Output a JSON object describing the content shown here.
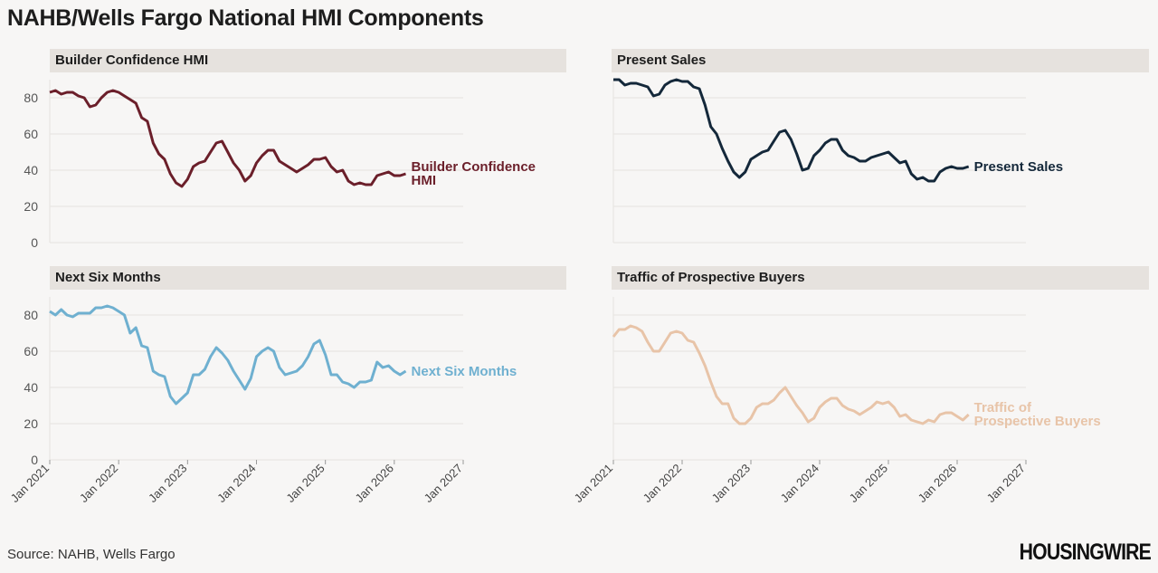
{
  "title": "NAHB/Wells Fargo National HMI Components",
  "source": "Source: NAHB, Wells Fargo",
  "logo": "HOUSINGWIRE",
  "chart_data": [
    {
      "type": "line",
      "title": "Builder Confidence HMI",
      "series_label": [
        "Builder Confidence",
        "HMI"
      ],
      "color": "#6b1f2a",
      "x_start": "2021-01",
      "x_ticks": [
        "Jan 2021",
        "Jan 2022",
        "Jan 2023",
        "Jan 2024",
        "Jan 2025",
        "Jan 2026",
        "Jan 2027"
      ],
      "ylim": [
        0,
        90
      ],
      "y_ticks": [
        0,
        20,
        40,
        60,
        80
      ],
      "grid": true,
      "values": [
        83,
        84,
        82,
        83,
        83,
        81,
        80,
        75,
        76,
        80,
        83,
        84,
        83,
        81,
        79,
        77,
        69,
        67,
        55,
        49,
        46,
        38,
        33,
        31,
        35,
        42,
        44,
        45,
        50,
        55,
        56,
        50,
        44,
        40,
        34,
        37,
        44,
        48,
        51,
        51,
        45,
        43,
        41,
        39,
        41,
        43,
        46,
        46,
        47,
        42,
        39,
        40,
        34,
        32,
        33,
        32,
        32,
        37,
        38,
        39,
        37,
        37,
        38
      ]
    },
    {
      "type": "line",
      "title": "Present Sales",
      "series_label": [
        "Present Sales"
      ],
      "color": "#14283a",
      "x_start": "2021-01",
      "x_ticks": [
        "Jan 2021",
        "Jan 2022",
        "Jan 2023",
        "Jan 2024",
        "Jan 2025",
        "Jan 2026",
        "Jan 2027"
      ],
      "ylim": [
        0,
        90
      ],
      "y_ticks": [
        0,
        20,
        40,
        60,
        80
      ],
      "grid": true,
      "values": [
        90,
        90,
        87,
        88,
        88,
        87,
        86,
        81,
        82,
        87,
        89,
        90,
        89,
        89,
        86,
        85,
        76,
        64,
        60,
        52,
        45,
        39,
        36,
        39,
        46,
        48,
        50,
        51,
        56,
        61,
        62,
        57,
        49,
        40,
        41,
        48,
        51,
        55,
        57,
        57,
        51,
        48,
        47,
        45,
        45,
        47,
        48,
        49,
        50,
        47,
        44,
        45,
        38,
        35,
        36,
        34,
        34,
        39,
        41,
        42,
        41,
        41,
        42
      ]
    },
    {
      "type": "line",
      "title": "Next Six Months",
      "series_label": [
        "Next Six Months"
      ],
      "color": "#6fb0d0",
      "x_start": "2021-01",
      "x_ticks": [
        "Jan 2021",
        "Jan 2022",
        "Jan 2023",
        "Jan 2024",
        "Jan 2025",
        "Jan 2026",
        "Jan 2027"
      ],
      "ylim": [
        0,
        90
      ],
      "y_ticks": [
        0,
        20,
        40,
        60,
        80
      ],
      "grid": true,
      "values": [
        82,
        80,
        83,
        80,
        79,
        81,
        81,
        81,
        84,
        84,
        85,
        84,
        82,
        80,
        70,
        73,
        63,
        62,
        49,
        47,
        46,
        35,
        31,
        34,
        37,
        47,
        47,
        50,
        57,
        62,
        59,
        55,
        49,
        44,
        39,
        45,
        57,
        60,
        62,
        60,
        51,
        47,
        48,
        49,
        52,
        57,
        64,
        66,
        58,
        47,
        47,
        43,
        42,
        40,
        43,
        43,
        44,
        54,
        51,
        52,
        49,
        47,
        49
      ]
    },
    {
      "type": "line",
      "title": "Traffic of Prospective Buyers",
      "series_label": [
        "Traffic of",
        "Prospective Buyers"
      ],
      "color": "#e8c4a8",
      "x_start": "2021-01",
      "x_ticks": [
        "Jan 2021",
        "Jan 2022",
        "Jan 2023",
        "Jan 2024",
        "Jan 2025",
        "Jan 2026",
        "Jan 2027"
      ],
      "ylim": [
        0,
        90
      ],
      "y_ticks": [
        0,
        20,
        40,
        60,
        80
      ],
      "grid": true,
      "values": [
        68,
        72,
        72,
        74,
        73,
        71,
        65,
        60,
        60,
        65,
        70,
        71,
        70,
        66,
        65,
        59,
        52,
        43,
        35,
        31,
        31,
        23,
        20,
        20,
        23,
        29,
        31,
        31,
        33,
        37,
        40,
        35,
        30,
        26,
        21,
        23,
        29,
        32,
        34,
        34,
        30,
        28,
        27,
        25,
        27,
        29,
        32,
        31,
        32,
        29,
        24,
        25,
        22,
        21,
        20,
        22,
        21,
        25,
        26,
        26,
        24,
        22,
        25
      ]
    }
  ]
}
